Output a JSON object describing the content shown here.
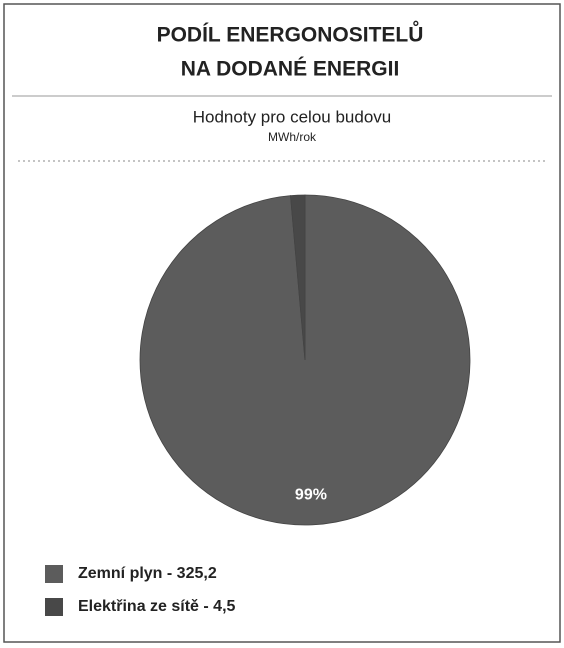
{
  "chart_data": {
    "type": "pie",
    "title": "PODÍL ENERGONOSITELŮ",
    "title_line2": "NA DODANÉ ENERGII",
    "subtitle": "Hodnoty pro celou budovu",
    "unit": "MWh/rok",
    "categories": [
      "Zemní plyn - 325,2",
      "Elektřina ze sítě - 4,5"
    ],
    "values": [
      98.6,
      1.4
    ],
    "value_labels": [
      "99%",
      null
    ],
    "colors": [
      "#5c5c5c",
      "#484848"
    ],
    "legend": "bottom-left"
  }
}
